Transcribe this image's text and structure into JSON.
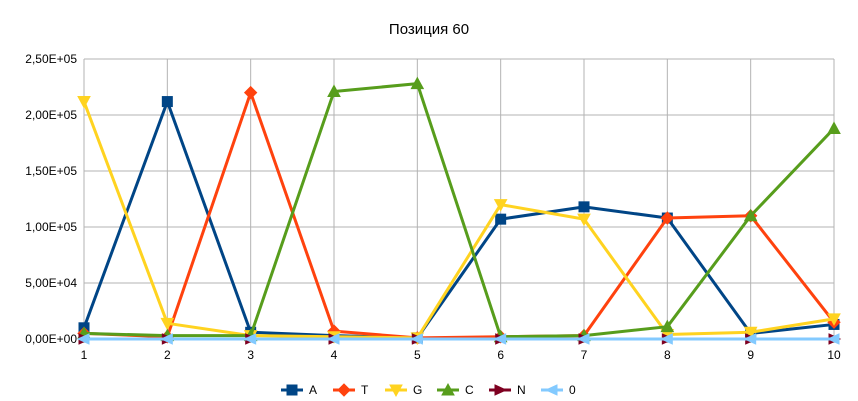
{
  "chart_data": {
    "type": "line",
    "title": "Позиция 60",
    "xlabel": "",
    "ylabel": "",
    "categories": [
      "1",
      "2",
      "3",
      "4",
      "5",
      "6",
      "7",
      "8",
      "9",
      "10"
    ],
    "ylim": [
      0,
      250000
    ],
    "y_ticks": [
      0,
      50000,
      100000,
      150000,
      200000,
      250000
    ],
    "y_tick_labels": [
      "0,00E+00",
      "5,00E+04",
      "1,00E+05",
      "1,50E+05",
      "2,00E+05",
      "2,50E+05"
    ],
    "grid": true,
    "legend_position": "bottom",
    "series": [
      {
        "name": "A",
        "color": "#004586",
        "marker": "square",
        "values": [
          10000,
          212000,
          6000,
          3000,
          1000,
          107000,
          118000,
          108000,
          5000,
          13000
        ]
      },
      {
        "name": "T",
        "color": "#ff420e",
        "marker": "diamond",
        "values": [
          5000,
          2000,
          220000,
          7000,
          1000,
          2000,
          3000,
          108000,
          110000,
          15000
        ]
      },
      {
        "name": "G",
        "color": "#ffd320",
        "marker": "triangle-down",
        "values": [
          212000,
          14000,
          3000,
          2000,
          1000,
          120000,
          107000,
          4000,
          6000,
          18000
        ]
      },
      {
        "name": "C",
        "color": "#579d1c",
        "marker": "triangle-up",
        "values": [
          5000,
          3000,
          3000,
          221000,
          228000,
          2000,
          3000,
          11000,
          110000,
          188000
        ]
      },
      {
        "name": "N",
        "color": "#7e0021",
        "marker": "arrow-right",
        "values": [
          0,
          0,
          0,
          0,
          0,
          0,
          0,
          0,
          0,
          0
        ]
      },
      {
        "name": "0",
        "color": "#83caff",
        "marker": "arrow-left",
        "values": [
          0,
          0,
          0,
          0,
          0,
          0,
          0,
          0,
          0,
          0
        ]
      }
    ]
  }
}
